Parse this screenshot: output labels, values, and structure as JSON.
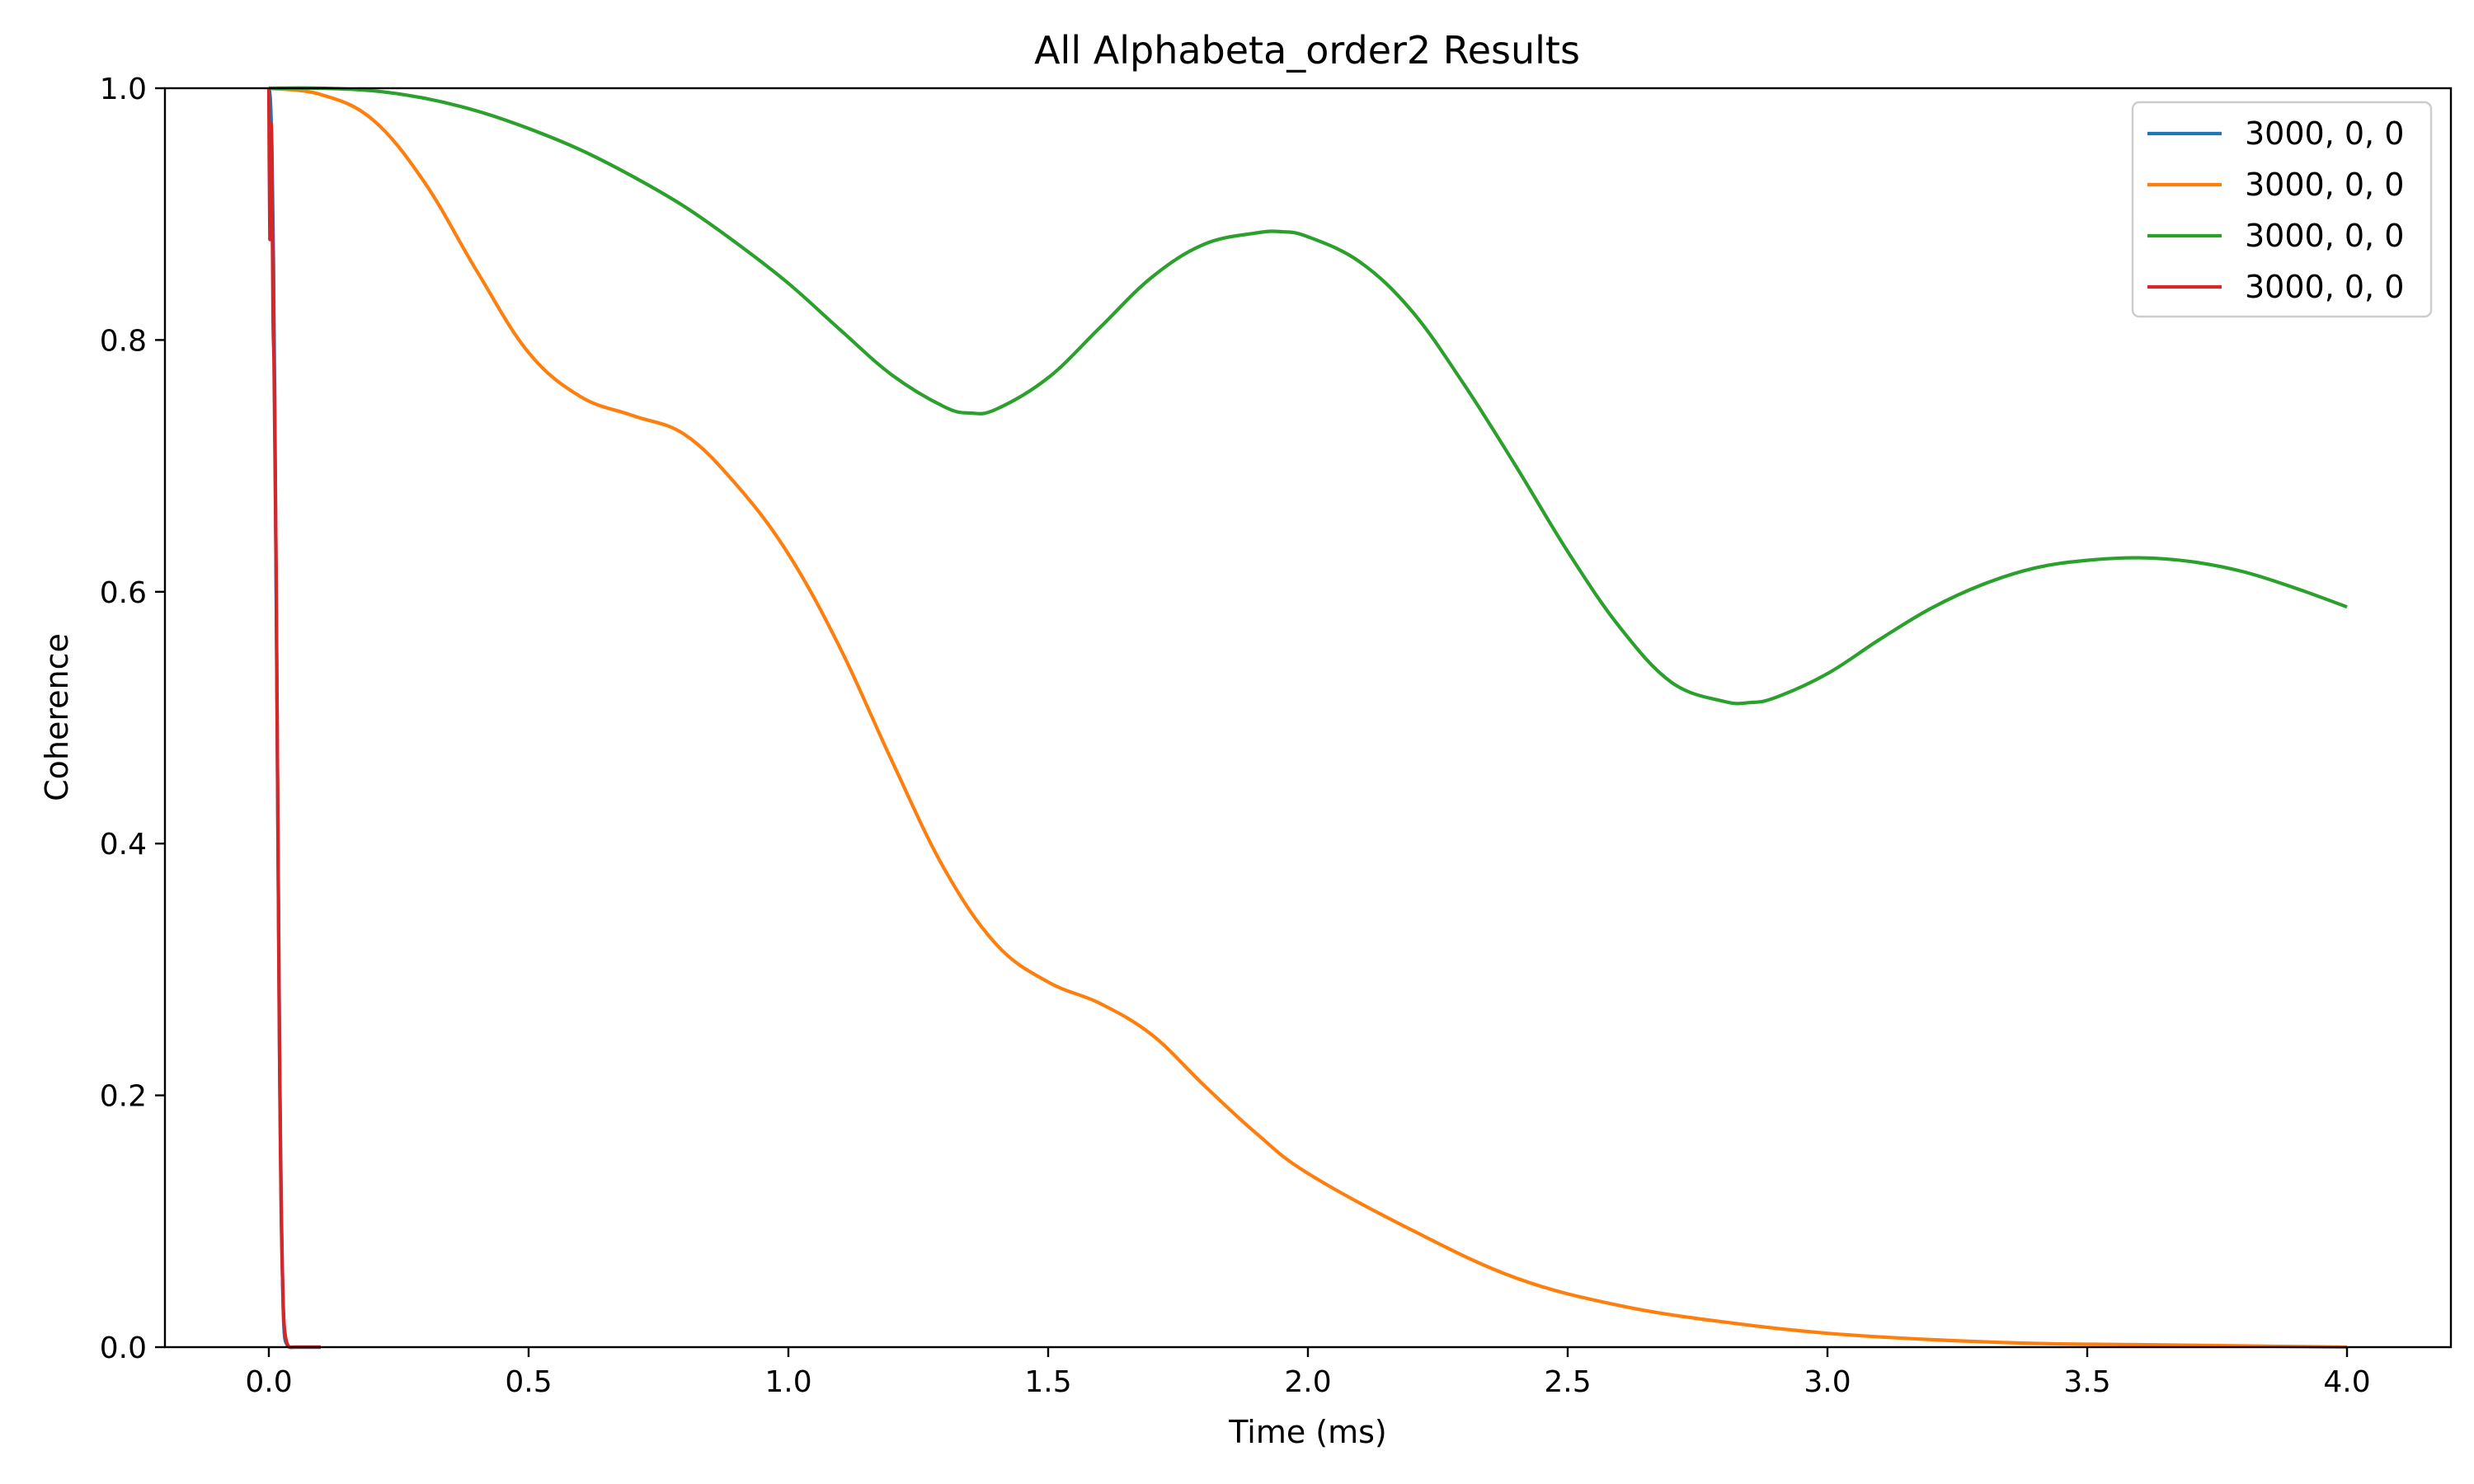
{
  "chart_data": {
    "type": "line",
    "title": "All Alphabeta_order2 Results",
    "xlabel": "Time (ms)",
    "ylabel": "Coherence",
    "xlim": [
      -0.2,
      4.2
    ],
    "ylim": [
      0.0,
      1.0
    ],
    "xticks": [
      0.0,
      0.5,
      1.0,
      1.5,
      2.0,
      2.5,
      3.0,
      3.5,
      4.0
    ],
    "xtick_labels": [
      "0.0",
      "0.5",
      "1.0",
      "1.5",
      "2.0",
      "2.5",
      "3.0",
      "3.5",
      "4.0"
    ],
    "yticks": [
      0.0,
      0.2,
      0.4,
      0.6,
      0.8,
      1.0
    ],
    "ytick_labels": [
      "0.0",
      "0.2",
      "0.4",
      "0.6",
      "0.8",
      "1.0"
    ],
    "grid": false,
    "legend_position": "top-right",
    "series": [
      {
        "name": "3000, 0, 0",
        "color": "#1f77b4",
        "x": [
          0.0,
          0.003,
          0.006,
          0.009,
          0.012,
          0.015,
          0.018,
          0.021,
          0.024,
          0.027,
          0.03,
          0.035,
          0.04,
          0.05,
          0.07,
          0.1
        ],
        "y": [
          1.0,
          0.99,
          0.95,
          0.86,
          0.72,
          0.55,
          0.38,
          0.22,
          0.11,
          0.04,
          0.01,
          0.002,
          0.0,
          0.0,
          0.0,
          0.0
        ]
      },
      {
        "name": "3000, 0, 0",
        "color": "#ff7f0e",
        "x": [
          0.0,
          0.1,
          0.2,
          0.3,
          0.4,
          0.5,
          0.6,
          0.7,
          0.8,
          0.9,
          1.0,
          1.1,
          1.2,
          1.3,
          1.4,
          1.5,
          1.6,
          1.7,
          1.8,
          1.9,
          2.0,
          2.2,
          2.4,
          2.6,
          2.8,
          3.0,
          3.2,
          3.4,
          3.6,
          3.8,
          4.0
        ],
        "y": [
          1.0,
          0.995,
          0.975,
          0.925,
          0.855,
          0.79,
          0.755,
          0.74,
          0.725,
          0.685,
          0.63,
          0.555,
          0.465,
          0.38,
          0.32,
          0.29,
          0.273,
          0.248,
          0.208,
          0.17,
          0.138,
          0.093,
          0.055,
          0.033,
          0.02,
          0.011,
          0.006,
          0.003,
          0.002,
          0.001,
          0.0
        ]
      },
      {
        "name": "3000, 0, 0",
        "color": "#2ca02c",
        "x": [
          0.0,
          0.1,
          0.2,
          0.3,
          0.4,
          0.5,
          0.6,
          0.7,
          0.8,
          0.9,
          1.0,
          1.1,
          1.2,
          1.3,
          1.35,
          1.4,
          1.5,
          1.6,
          1.7,
          1.8,
          1.9,
          1.95,
          2.0,
          2.1,
          2.2,
          2.3,
          2.4,
          2.5,
          2.6,
          2.7,
          2.8,
          2.85,
          2.9,
          3.0,
          3.1,
          3.2,
          3.3,
          3.4,
          3.5,
          3.6,
          3.7,
          3.8,
          3.9,
          4.0
        ],
        "y": [
          1.0,
          1.0,
          0.998,
          0.992,
          0.982,
          0.968,
          0.951,
          0.93,
          0.906,
          0.877,
          0.845,
          0.808,
          0.772,
          0.747,
          0.742,
          0.745,
          0.77,
          0.81,
          0.85,
          0.876,
          0.885,
          0.886,
          0.882,
          0.862,
          0.823,
          0.765,
          0.7,
          0.632,
          0.572,
          0.528,
          0.513,
          0.512,
          0.516,
          0.535,
          0.562,
          0.587,
          0.606,
          0.619,
          0.625,
          0.627,
          0.624,
          0.616,
          0.603,
          0.588
        ]
      },
      {
        "name": "3000, 0, 0",
        "color": "#d62728",
        "x": [
          0.0,
          0.002,
          0.004,
          0.006,
          0.008,
          0.01,
          0.012,
          0.014,
          0.016,
          0.018,
          0.02,
          0.022,
          0.024,
          0.026,
          0.028,
          0.03,
          0.033,
          0.036,
          0.04,
          0.05,
          0.07,
          0.1
        ],
        "y": [
          1.0,
          0.88,
          0.97,
          0.93,
          0.82,
          0.78,
          0.7,
          0.62,
          0.5,
          0.38,
          0.26,
          0.17,
          0.1,
          0.06,
          0.03,
          0.015,
          0.006,
          0.002,
          0.0,
          0.0,
          0.0,
          0.0
        ]
      }
    ]
  }
}
